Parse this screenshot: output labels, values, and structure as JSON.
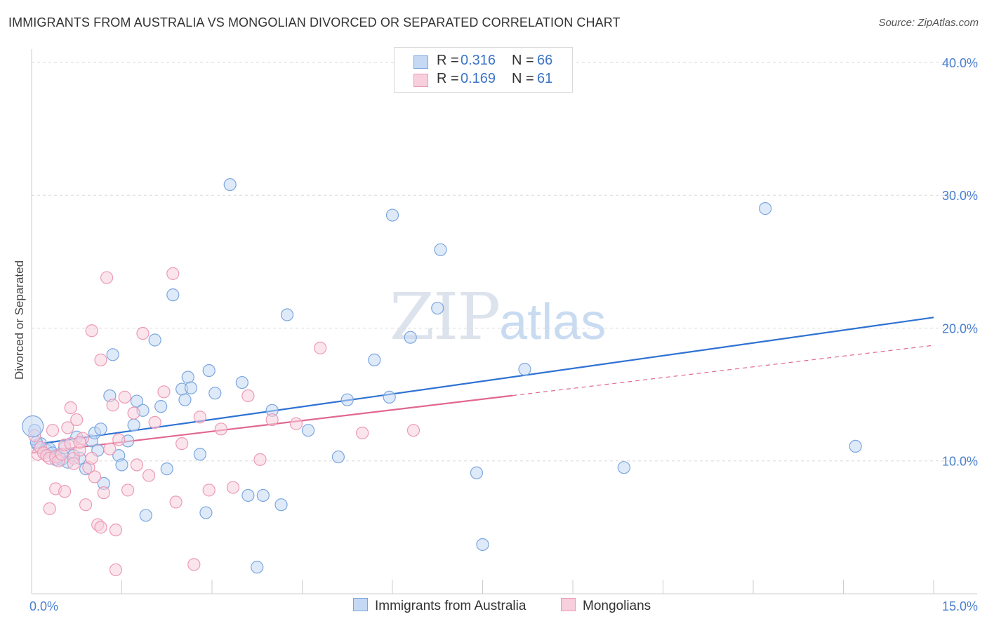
{
  "header": {
    "title": "IMMIGRANTS FROM AUSTRALIA VS MONGOLIAN DIVORCED OR SEPARATED CORRELATION CHART",
    "source": "Source: ZipAtlas.com"
  },
  "watermark": {
    "zip": "ZIP",
    "atlas": "atlas"
  },
  "legend": {
    "rows": [
      {
        "r_label": "R =",
        "r_value": "0.316",
        "n_label": "N =",
        "n_value": "66",
        "color": "#7ba6e0",
        "fill": "#c5d8f4"
      },
      {
        "r_label": "R =",
        "r_value": "0.169",
        "n_label": "N =",
        "n_value": "61",
        "color": "#ec9ab5",
        "fill": "#f8cfdc"
      }
    ]
  },
  "bottom_legend": {
    "items": [
      {
        "label": "Immigrants from Australia",
        "color": "#7ba6e0",
        "fill": "#c5d8f4"
      },
      {
        "label": "Mongolians",
        "color": "#ec9ab5",
        "fill": "#f8cfdc"
      }
    ]
  },
  "chart_data": {
    "type": "scatter",
    "title": "IMMIGRANTS FROM AUSTRALIA VS MONGOLIAN DIVORCED OR SEPARATED CORRELATION CHART",
    "xlabel": "",
    "ylabel": "Divorced or Separated",
    "xlim": [
      0,
      15
    ],
    "ylim": [
      0,
      41
    ],
    "x_tick_labels": [
      {
        "value": 0,
        "label": "0.0%"
      },
      {
        "value": 15,
        "label": "15.0%"
      }
    ],
    "y_tick_labels": [
      {
        "value": 10,
        "label": "10.0%"
      },
      {
        "value": 20,
        "label": "20.0%"
      },
      {
        "value": 30,
        "label": "30.0%"
      },
      {
        "value": 40,
        "label": "40.0%"
      }
    ],
    "gridlines_y": [
      10,
      20,
      30,
      40
    ],
    "series": [
      {
        "name": "Immigrants from Australia",
        "color": "#7ba6e0",
        "fill": "#c5d8f4",
        "line_color": "#2e72d2",
        "trend": {
          "x0": 0,
          "y0": 11.2,
          "x1": 15,
          "y1": 20.8,
          "solid_to": 15
        },
        "x": [
          0.1,
          0.15,
          0.2,
          0.25,
          0.3,
          0.35,
          0.4,
          0.45,
          0.5,
          0.55,
          0.6,
          0.7,
          0.75,
          0.8,
          0.9,
          1.0,
          1.05,
          1.1,
          1.15,
          1.2,
          1.3,
          1.35,
          1.45,
          1.5,
          1.6,
          1.7,
          1.75,
          1.85,
          1.9,
          2.05,
          2.15,
          2.25,
          2.35,
          2.5,
          2.55,
          2.6,
          2.65,
          2.8,
          2.9,
          2.95,
          3.05,
          3.3,
          3.5,
          3.6,
          3.75,
          3.85,
          4.0,
          4.15,
          4.25,
          4.6,
          5.1,
          5.25,
          5.7,
          5.95,
          6.0,
          6.3,
          6.75,
          6.8,
          7.4,
          7.5,
          8.2,
          9.85,
          12.2,
          13.7,
          0.05,
          0.08
        ],
        "y": [
          11.2,
          11.3,
          10.6,
          10.8,
          10.9,
          10.6,
          10.1,
          10.3,
          10.1,
          11.0,
          9.9,
          10.4,
          11.8,
          10.2,
          9.4,
          11.5,
          12.1,
          10.8,
          12.4,
          8.3,
          14.9,
          18.0,
          10.4,
          9.7,
          11.5,
          12.7,
          14.5,
          13.8,
          5.9,
          19.1,
          14.1,
          9.4,
          22.5,
          15.4,
          14.6,
          16.3,
          15.5,
          10.5,
          6.1,
          16.8,
          15.1,
          30.8,
          15.9,
          7.4,
          2.0,
          7.4,
          13.8,
          6.7,
          21.0,
          12.3,
          10.3,
          14.6,
          17.6,
          14.8,
          28.5,
          19.3,
          21.5,
          25.9,
          9.1,
          3.7,
          16.9,
          9.5,
          29.0,
          11.1,
          12.3,
          11.4
        ]
      },
      {
        "name": "Mongolians",
        "color": "#ec9ab5",
        "fill": "#f8cfdc",
        "line_color": "#e0688f",
        "trend": {
          "x0": 0,
          "y0": 10.6,
          "x1": 15,
          "y1": 18.7,
          "solid_to": 8.0
        },
        "x": [
          0.05,
          0.1,
          0.15,
          0.2,
          0.25,
          0.3,
          0.35,
          0.4,
          0.45,
          0.5,
          0.55,
          0.6,
          0.65,
          0.7,
          0.75,
          0.8,
          0.85,
          0.9,
          0.95,
          1.0,
          1.05,
          1.1,
          1.15,
          1.2,
          1.3,
          1.35,
          1.4,
          1.45,
          1.55,
          1.6,
          1.7,
          1.75,
          1.85,
          1.95,
          2.05,
          2.2,
          2.35,
          2.4,
          2.5,
          2.7,
          2.8,
          2.95,
          3.15,
          3.35,
          3.6,
          3.8,
          4.0,
          4.4,
          4.8,
          5.5,
          6.35,
          0.3,
          0.4,
          0.55,
          0.65,
          0.7,
          0.8,
          1.0,
          1.15,
          1.25,
          1.4
        ],
        "y": [
          11.9,
          10.5,
          11.0,
          10.6,
          10.4,
          10.2,
          12.3,
          10.3,
          10.0,
          10.5,
          11.2,
          12.5,
          11.3,
          10.2,
          13.1,
          10.8,
          11.7,
          6.7,
          9.5,
          10.2,
          8.8,
          5.2,
          5.0,
          7.6,
          10.9,
          14.2,
          4.8,
          11.6,
          14.8,
          7.8,
          13.6,
          9.7,
          19.6,
          8.9,
          12.9,
          15.2,
          24.1,
          6.9,
          11.3,
          2.2,
          13.3,
          7.8,
          12.4,
          8.0,
          14.9,
          10.1,
          13.1,
          12.8,
          18.5,
          12.1,
          12.3,
          6.4,
          7.9,
          7.7,
          14.0,
          9.8,
          11.4,
          19.8,
          17.6,
          23.8,
          1.8
        ]
      }
    ]
  }
}
